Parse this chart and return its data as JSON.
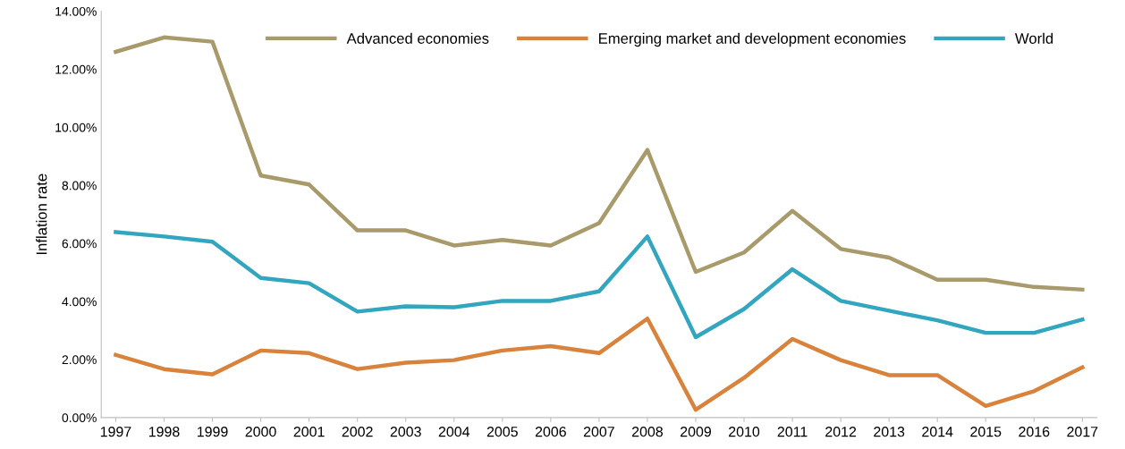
{
  "chart_data": {
    "type": "line",
    "ylabel": "Inflation rate",
    "categories": [
      "1997",
      "1998",
      "1999",
      "2000",
      "2001",
      "2002",
      "2003",
      "2004",
      "2005",
      "2006",
      "2007",
      "2008",
      "2009",
      "2010",
      "2011",
      "2012",
      "2013",
      "2014",
      "2015",
      "2016",
      "2017"
    ],
    "series": [
      {
        "name": "Advanced economies",
        "color": "#a89a6a",
        "values": [
          12.6,
          13.1,
          12.95,
          8.34,
          8.03,
          6.45,
          6.45,
          5.93,
          6.12,
          5.93,
          6.7,
          9.22,
          5.02,
          5.69,
          7.12,
          5.81,
          5.51,
          4.75,
          4.75,
          4.5,
          4.41
        ]
      },
      {
        "name": "Emerging market and development economies",
        "color": "#d9823b",
        "values": [
          2.16,
          1.67,
          1.49,
          2.31,
          2.22,
          1.67,
          1.89,
          1.98,
          2.31,
          2.46,
          2.22,
          3.41,
          0.27,
          1.37,
          2.71,
          1.98,
          1.46,
          1.46,
          0.4,
          0.91,
          1.73
        ]
      },
      {
        "name": "World",
        "color": "#31a6be",
        "values": [
          6.39,
          6.24,
          6.06,
          4.81,
          4.63,
          3.65,
          3.83,
          3.8,
          4.02,
          4.02,
          4.35,
          6.24,
          2.77,
          3.74,
          5.11,
          4.02,
          3.68,
          3.35,
          2.92,
          2.92,
          3.38
        ]
      }
    ],
    "ylim": [
      0,
      14
    ],
    "yticks": [
      {
        "value": 0,
        "label": "0.00%"
      },
      {
        "value": 2,
        "label": "2.00%"
      },
      {
        "value": 4,
        "label": "4.00%"
      },
      {
        "value": 6,
        "label": "6.00%"
      },
      {
        "value": 8,
        "label": "8.00%"
      },
      {
        "value": 10,
        "label": "10.00%"
      },
      {
        "value": 12,
        "label": "12.00%"
      },
      {
        "value": 14,
        "label": "14.00%"
      }
    ],
    "grid": false,
    "legend": "top right",
    "marker": "none",
    "line_style": "solid"
  }
}
